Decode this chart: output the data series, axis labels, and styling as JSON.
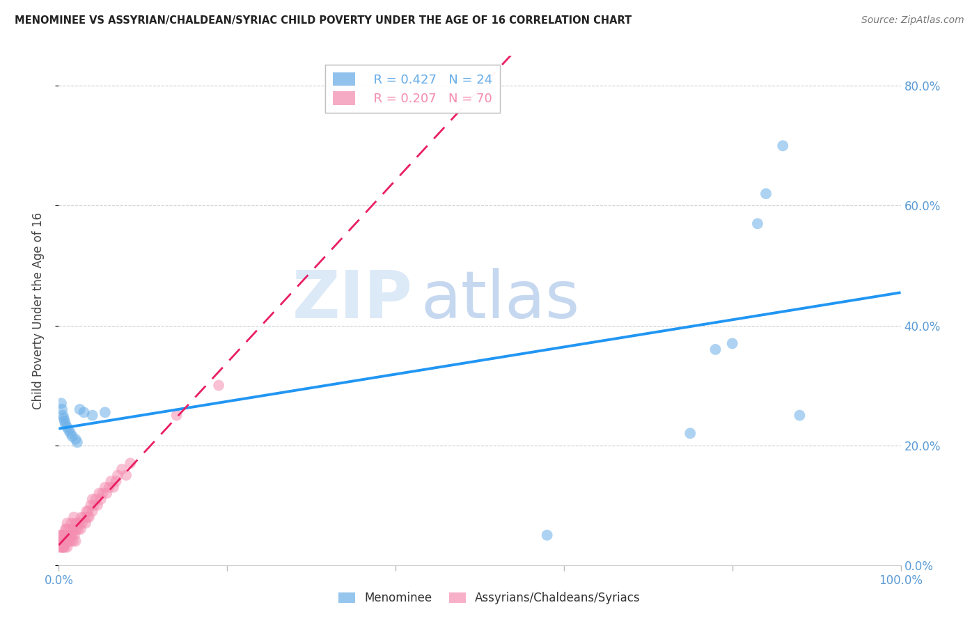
{
  "title": "MENOMINEE VS ASSYRIAN/CHALDEAN/SYRIAC CHILD POVERTY UNDER THE AGE OF 16 CORRELATION CHART",
  "source": "Source: ZipAtlas.com",
  "ylabel": "Child Poverty Under the Age of 16",
  "xlim": [
    0,
    1.0
  ],
  "ylim": [
    0,
    0.85
  ],
  "yticks": [
    0.0,
    0.2,
    0.4,
    0.6,
    0.8
  ],
  "ytick_labels": [
    "0.0%",
    "20.0%",
    "40.0%",
    "60.0%",
    "80.0%"
  ],
  "xticks": [
    0.0,
    0.2,
    0.4,
    0.6,
    0.8,
    1.0
  ],
  "xtick_labels": [
    "0.0%",
    "",
    "",
    "",
    "",
    "100.0%"
  ],
  "legend_R1": "R = 0.427",
  "legend_N1": "N = 24",
  "legend_R2": "R = 0.207",
  "legend_N2": "N = 70",
  "blue_color": "#6aaee8",
  "pink_color": "#f48fb1",
  "trend_blue": "#2196F3",
  "trend_pink": "#e91e63",
  "watermark_zip": "ZIP",
  "watermark_atlas": "atlas",
  "menominee_x": [
    0.003,
    0.004,
    0.005,
    0.006,
    0.007,
    0.008,
    0.01,
    0.012,
    0.014,
    0.016,
    0.02,
    0.022,
    0.025,
    0.03,
    0.04,
    0.055,
    0.58,
    0.75,
    0.78,
    0.8,
    0.83,
    0.84,
    0.86,
    0.88
  ],
  "menominee_y": [
    0.27,
    0.26,
    0.25,
    0.245,
    0.24,
    0.235,
    0.23,
    0.225,
    0.22,
    0.215,
    0.21,
    0.205,
    0.26,
    0.255,
    0.25,
    0.255,
    0.05,
    0.22,
    0.36,
    0.37,
    0.57,
    0.62,
    0.7,
    0.25
  ],
  "assyrian_x": [
    0.001,
    0.002,
    0.002,
    0.003,
    0.003,
    0.003,
    0.004,
    0.004,
    0.005,
    0.005,
    0.005,
    0.006,
    0.006,
    0.006,
    0.007,
    0.007,
    0.008,
    0.008,
    0.009,
    0.009,
    0.01,
    0.01,
    0.01,
    0.012,
    0.012,
    0.013,
    0.014,
    0.015,
    0.015,
    0.016,
    0.017,
    0.018,
    0.018,
    0.019,
    0.02,
    0.02,
    0.021,
    0.022,
    0.023,
    0.025,
    0.026,
    0.027,
    0.028,
    0.03,
    0.032,
    0.033,
    0.034,
    0.035,
    0.036,
    0.038,
    0.04,
    0.04,
    0.042,
    0.044,
    0.046,
    0.048,
    0.05,
    0.052,
    0.055,
    0.057,
    0.06,
    0.062,
    0.065,
    0.068,
    0.07,
    0.075,
    0.08,
    0.085,
    0.14,
    0.19
  ],
  "assyrian_y": [
    0.03,
    0.04,
    0.05,
    0.03,
    0.04,
    0.05,
    0.03,
    0.04,
    0.03,
    0.04,
    0.05,
    0.03,
    0.04,
    0.05,
    0.03,
    0.05,
    0.04,
    0.06,
    0.04,
    0.06,
    0.03,
    0.05,
    0.07,
    0.04,
    0.06,
    0.05,
    0.04,
    0.05,
    0.07,
    0.05,
    0.04,
    0.06,
    0.08,
    0.05,
    0.04,
    0.07,
    0.06,
    0.07,
    0.06,
    0.07,
    0.06,
    0.08,
    0.07,
    0.08,
    0.07,
    0.09,
    0.08,
    0.09,
    0.08,
    0.1,
    0.09,
    0.11,
    0.1,
    0.11,
    0.1,
    0.12,
    0.11,
    0.12,
    0.13,
    0.12,
    0.13,
    0.14,
    0.13,
    0.14,
    0.15,
    0.16,
    0.15,
    0.17,
    0.25,
    0.3
  ]
}
